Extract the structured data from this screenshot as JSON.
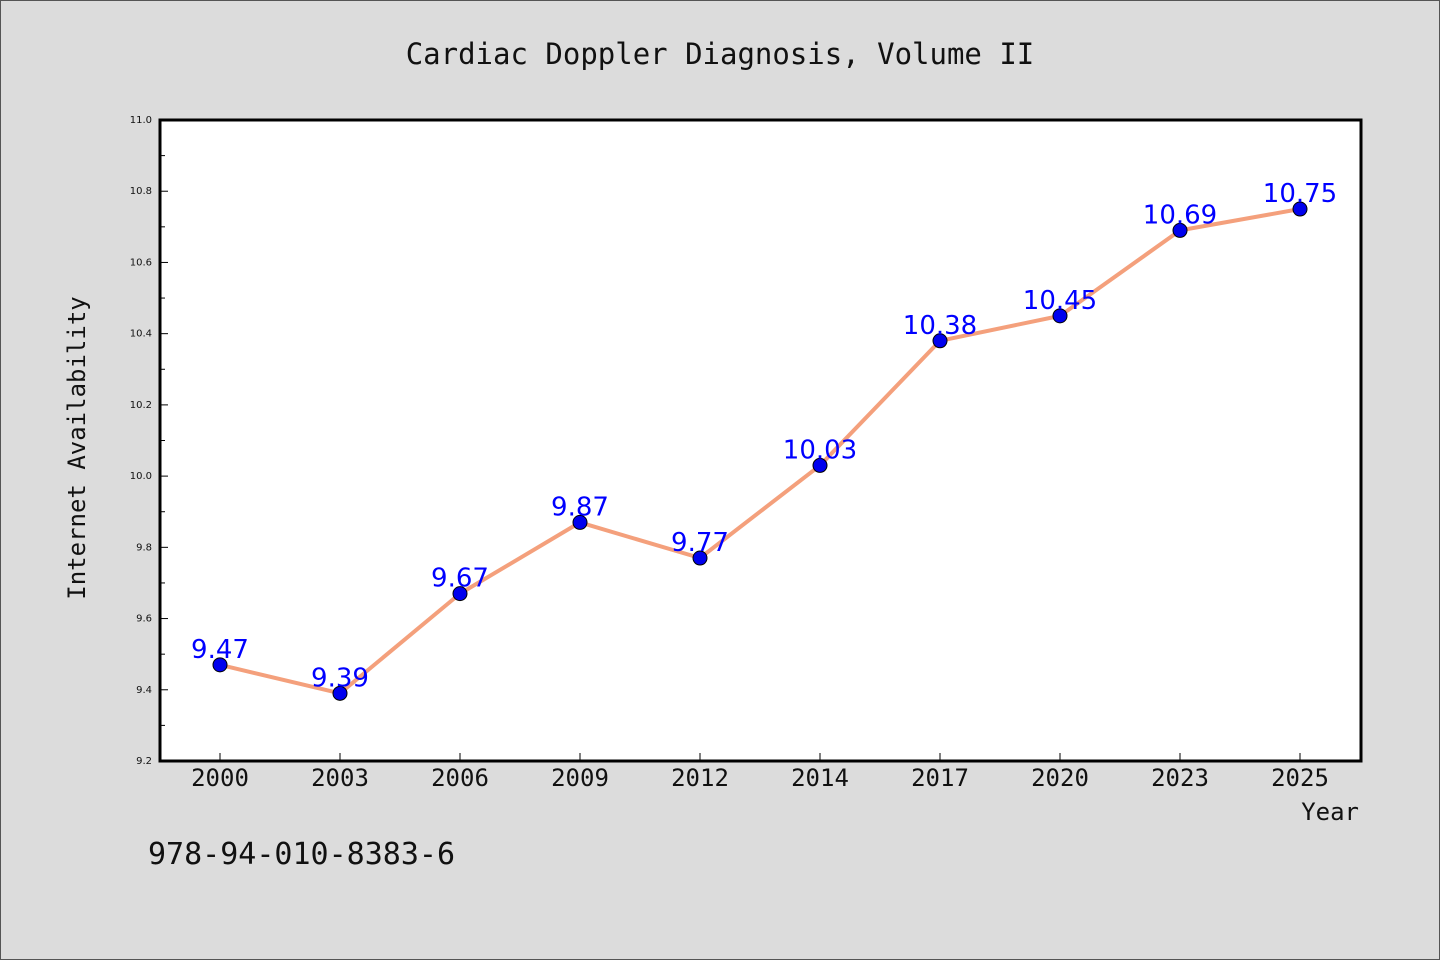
{
  "chart_data": {
    "type": "line",
    "title": "Cardiac Doppler Diagnosis, Volume II",
    "xlabel": "Year",
    "ylabel": "Internet Availability",
    "categories": [
      "2000",
      "2003",
      "2006",
      "2009",
      "2012",
      "2014",
      "2017",
      "2020",
      "2023",
      "2025"
    ],
    "series": [
      {
        "values": [
          9.47,
          9.39,
          9.67,
          9.87,
          9.77,
          10.03,
          10.38,
          10.45,
          10.69,
          10.75
        ]
      }
    ],
    "data_labels": [
      "9.47",
      "9.39",
      "9.67",
      "9.87",
      "9.77",
      "10.03",
      "10.38",
      "10.45",
      "10.69",
      "10.75"
    ],
    "ylim": [
      9.2,
      11.0
    ],
    "yticks": [
      "9.2",
      "9.4",
      "9.6",
      "9.8",
      "10.0",
      "10.2",
      "10.4",
      "10.6",
      "10.8",
      "11.0"
    ],
    "grid": false,
    "line_color": "#f4a07c",
    "marker_color": "#0000ee",
    "label_color": "#0000ff"
  },
  "footer": {
    "isbn": "978-94-010-8383-6"
  }
}
